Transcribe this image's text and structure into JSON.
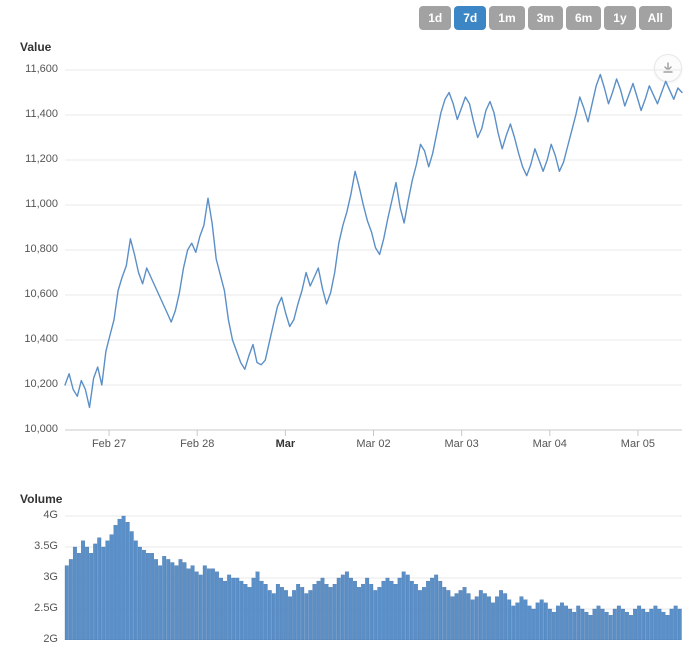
{
  "range_buttons": [
    {
      "label": "1d",
      "active": false
    },
    {
      "label": "7d",
      "active": true
    },
    {
      "label": "1m",
      "active": false
    },
    {
      "label": "3m",
      "active": false
    },
    {
      "label": "6m",
      "active": false
    },
    {
      "label": "1y",
      "active": false
    },
    {
      "label": "All",
      "active": false
    }
  ],
  "price_chart": {
    "title": "Value",
    "type": "line",
    "line_color": "#5b8fc7",
    "line_width": 1.4,
    "background": "#ffffff",
    "grid_color": "#e8e8e8",
    "axis_color": "#c8c8c8",
    "label_color": "#555555",
    "label_fontsize": 11,
    "ylim": [
      10000,
      11600
    ],
    "ytick_step": 200,
    "yticks": [
      10000,
      10200,
      10400,
      10600,
      10800,
      11000,
      11200,
      11400,
      11600
    ],
    "ytick_labels": [
      "10,000",
      "10,200",
      "10,400",
      "10,600",
      "10,800",
      "11,000",
      "11,200",
      "11,400",
      "11,600"
    ],
    "x_categories": [
      "Feb 27",
      "Feb 28",
      "Mar",
      "Mar 02",
      "Mar 03",
      "Mar 04",
      "Mar 05"
    ],
    "x_bold": [
      false,
      false,
      true,
      false,
      false,
      false,
      false
    ],
    "series": [
      10200,
      10250,
      10180,
      10150,
      10220,
      10180,
      10100,
      10230,
      10280,
      10200,
      10350,
      10420,
      10490,
      10620,
      10680,
      10730,
      10850,
      10780,
      10700,
      10650,
      10720,
      10680,
      10640,
      10600,
      10560,
      10520,
      10480,
      10530,
      10610,
      10720,
      10800,
      10830,
      10790,
      10860,
      10910,
      11030,
      10920,
      10760,
      10690,
      10620,
      10490,
      10400,
      10350,
      10300,
      10270,
      10330,
      10380,
      10300,
      10290,
      10310,
      10390,
      10470,
      10550,
      10590,
      10520,
      10460,
      10490,
      10560,
      10620,
      10700,
      10640,
      10680,
      10720,
      10630,
      10560,
      10610,
      10700,
      10830,
      10910,
      10970,
      11050,
      11150,
      11080,
      11000,
      10930,
      10880,
      10810,
      10780,
      10850,
      10940,
      11020,
      11100,
      10990,
      10920,
      11020,
      11110,
      11180,
      11270,
      11240,
      11170,
      11230,
      11320,
      11410,
      11470,
      11500,
      11450,
      11380,
      11430,
      11480,
      11450,
      11370,
      11300,
      11340,
      11420,
      11460,
      11410,
      11320,
      11250,
      11310,
      11360,
      11300,
      11230,
      11170,
      11130,
      11180,
      11250,
      11200,
      11150,
      11200,
      11270,
      11220,
      11150,
      11190,
      11260,
      11330,
      11400,
      11480,
      11430,
      11370,
      11450,
      11530,
      11580,
      11520,
      11450,
      11500,
      11560,
      11510,
      11440,
      11490,
      11540,
      11480,
      11420,
      11470,
      11530,
      11490,
      11450,
      11500,
      11550,
      11510,
      11470,
      11520,
      11500
    ]
  },
  "volume_chart": {
    "title": "Volume",
    "type": "bar",
    "bar_color": "#5b8fc7",
    "bar_border": "#3f6da3",
    "background": "#ffffff",
    "grid_color": "#e8e8e8",
    "axis_color": "#c8c8c8",
    "label_color": "#555555",
    "label_fontsize": 11,
    "ylim": [
      2.0,
      4.0
    ],
    "ytick_step": 0.5,
    "yticks": [
      2.0,
      2.5,
      3.0,
      3.5,
      4.0
    ],
    "ytick_labels": [
      "2G",
      "2.5G",
      "3G",
      "3.5G",
      "4G"
    ],
    "series": [
      3.2,
      3.3,
      3.5,
      3.4,
      3.6,
      3.5,
      3.4,
      3.55,
      3.65,
      3.5,
      3.6,
      3.7,
      3.85,
      3.95,
      4.05,
      3.9,
      3.75,
      3.6,
      3.5,
      3.45,
      3.4,
      3.4,
      3.3,
      3.2,
      3.35,
      3.3,
      3.25,
      3.2,
      3.3,
      3.25,
      3.15,
      3.2,
      3.1,
      3.05,
      3.2,
      3.15,
      3.15,
      3.1,
      3.0,
      2.95,
      3.05,
      3.0,
      3.0,
      2.95,
      2.9,
      2.85,
      3.0,
      3.1,
      2.95,
      2.9,
      2.8,
      2.75,
      2.9,
      2.85,
      2.8,
      2.7,
      2.8,
      2.9,
      2.85,
      2.75,
      2.8,
      2.9,
      2.95,
      3.0,
      2.9,
      2.85,
      2.9,
      3.0,
      3.05,
      3.1,
      3.0,
      2.95,
      2.85,
      2.9,
      3.0,
      2.9,
      2.8,
      2.85,
      2.95,
      3.0,
      2.95,
      2.9,
      3.0,
      3.1,
      3.05,
      2.95,
      2.9,
      2.8,
      2.85,
      2.95,
      3.0,
      3.05,
      2.95,
      2.85,
      2.8,
      2.7,
      2.75,
      2.8,
      2.85,
      2.75,
      2.65,
      2.7,
      2.8,
      2.75,
      2.7,
      2.6,
      2.7,
      2.8,
      2.75,
      2.65,
      2.55,
      2.6,
      2.7,
      2.65,
      2.55,
      2.5,
      2.6,
      2.65,
      2.6,
      2.5,
      2.45,
      2.55,
      2.6,
      2.55,
      2.5,
      2.45,
      2.55,
      2.5,
      2.45,
      2.4,
      2.5,
      2.55,
      2.5,
      2.45,
      2.4,
      2.5,
      2.55,
      2.5,
      2.45,
      2.4,
      2.5,
      2.55,
      2.5,
      2.45,
      2.5,
      2.55,
      2.5,
      2.45,
      2.4,
      2.5,
      2.55,
      2.5
    ]
  }
}
